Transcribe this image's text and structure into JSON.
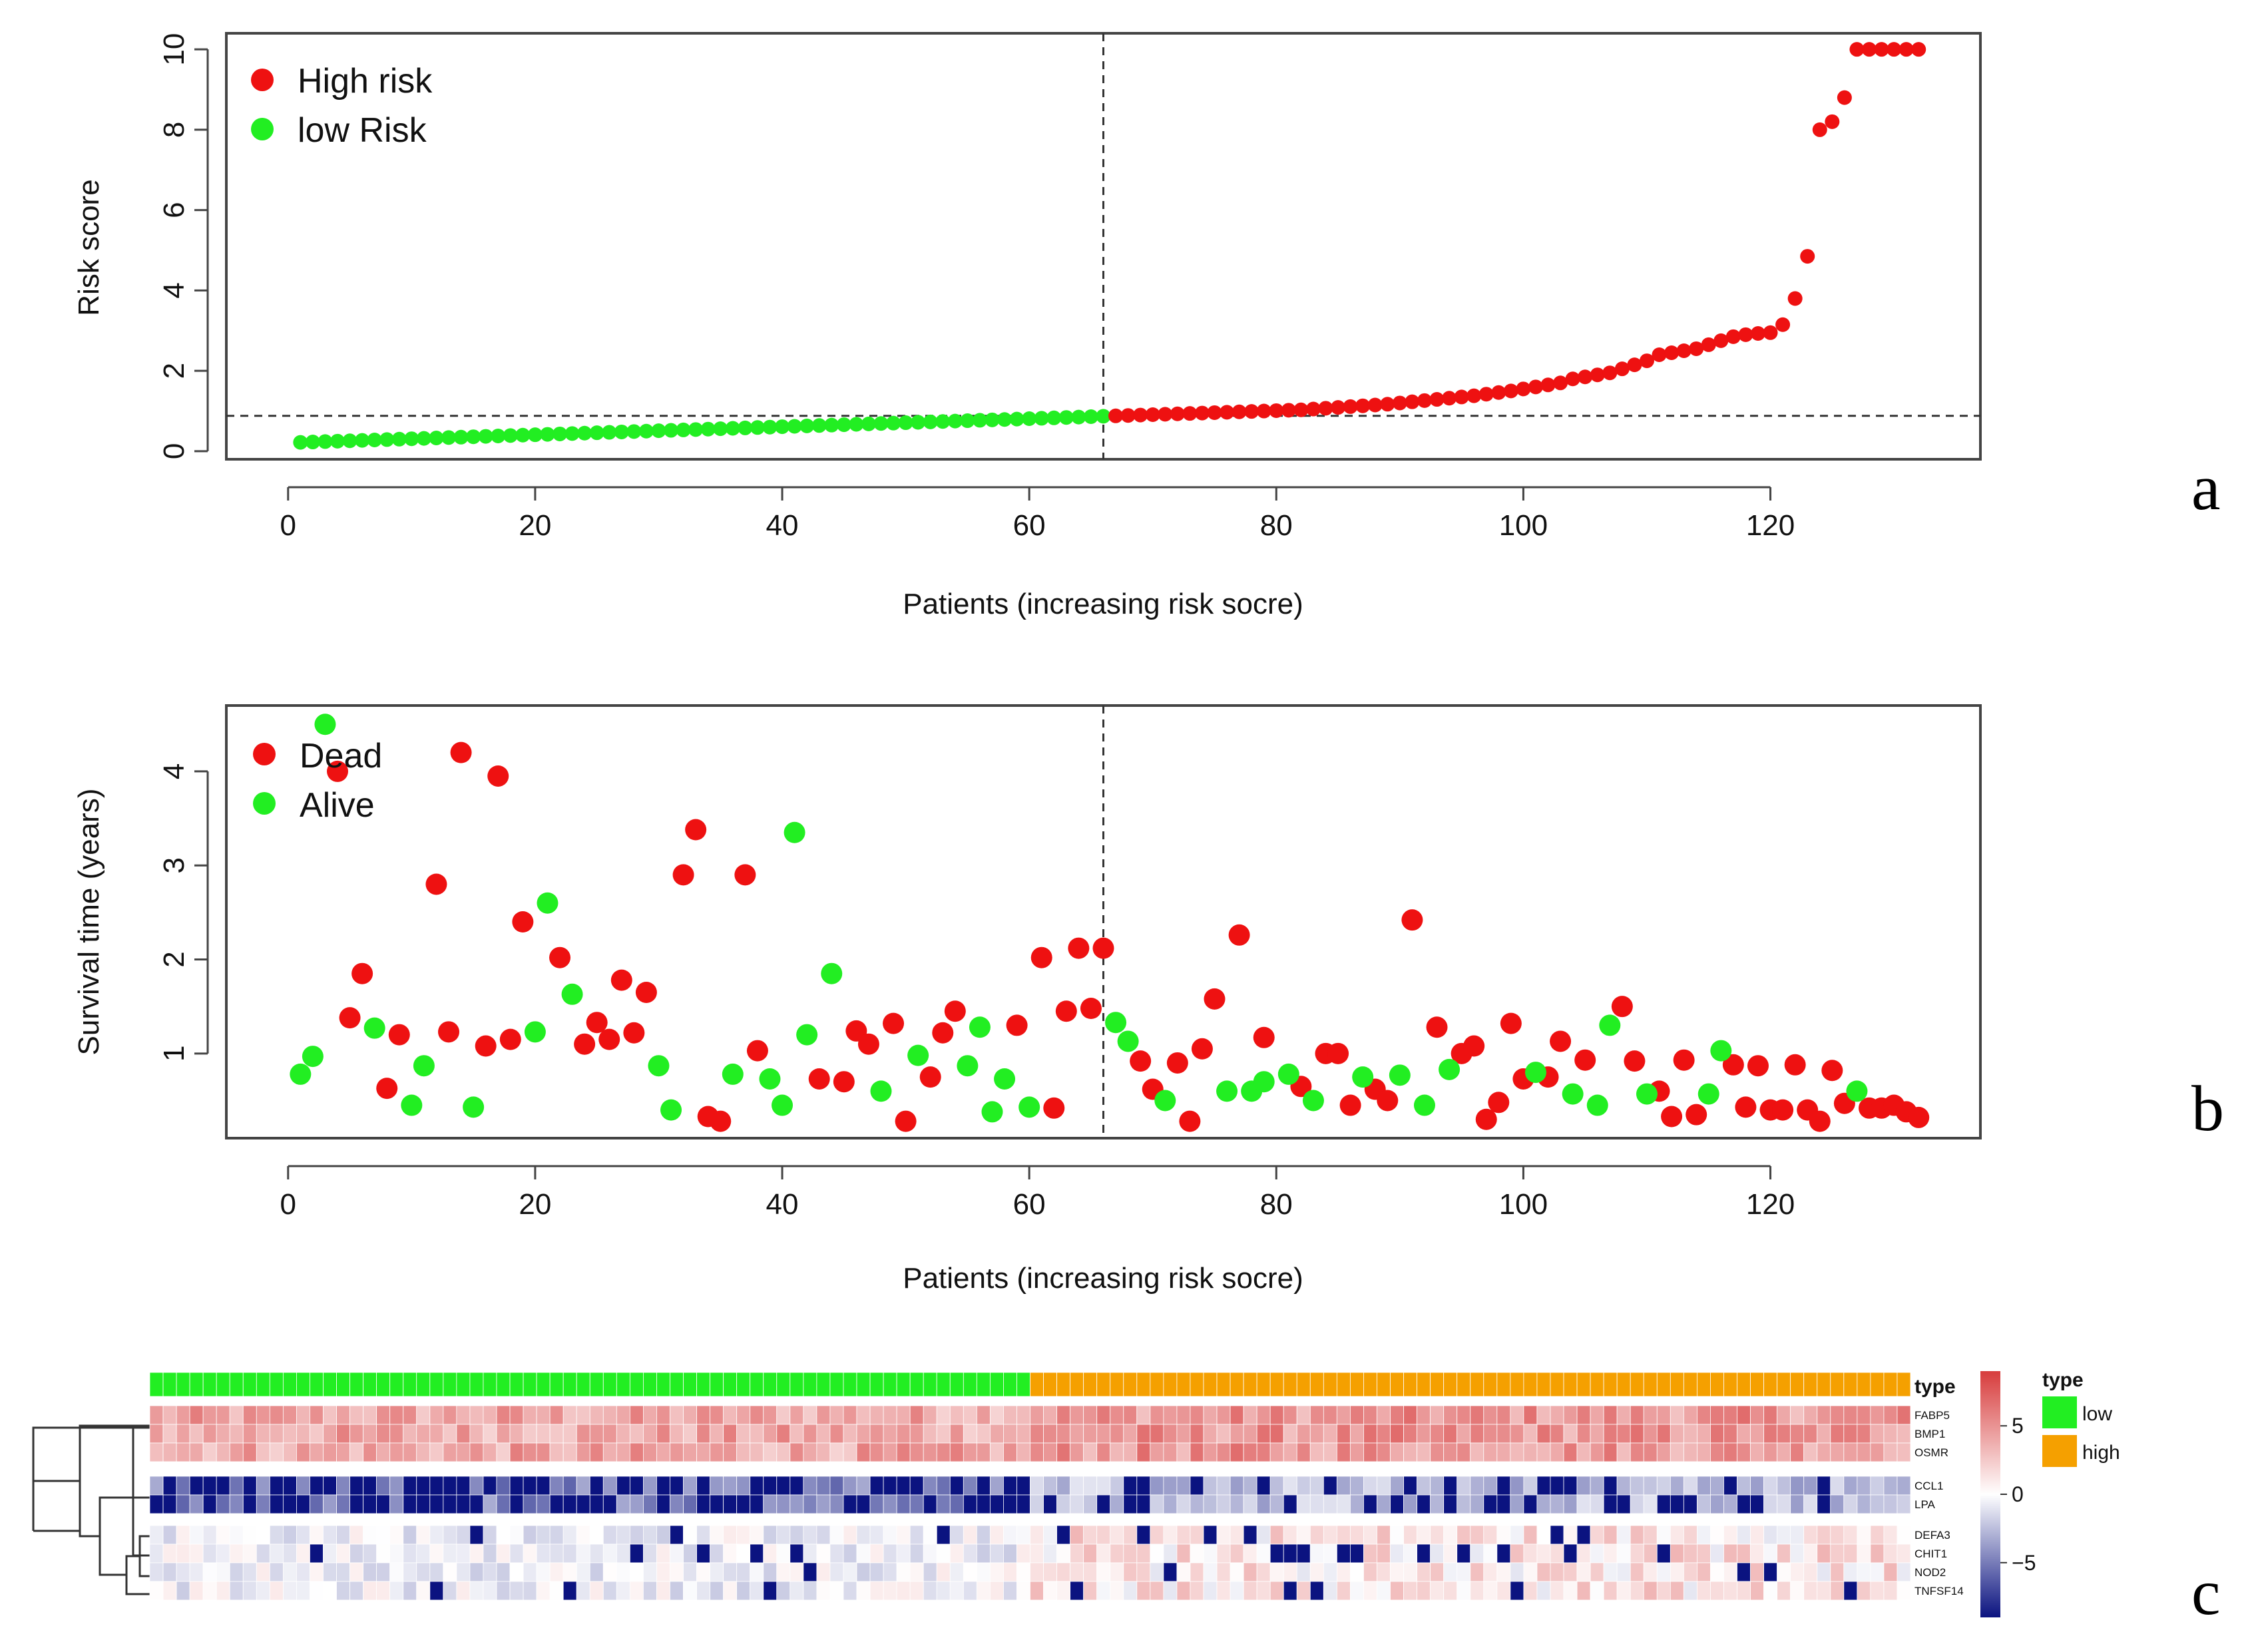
{
  "panels": {
    "a": "a",
    "b": "b",
    "c": "c"
  },
  "colors": {
    "red": "#ee1111",
    "green": "#22ee22",
    "orange": "#f5a000",
    "navy": "#0b1380"
  },
  "chart_data": [
    {
      "type": "scatter",
      "panel": "a",
      "title": "",
      "xlabel": "Patients (increasing risk socre)",
      "ylabel": "Risk score",
      "xlim": [
        -5,
        137
      ],
      "ylim": [
        -0.2,
        10.4
      ],
      "xticks": [
        "0",
        "20",
        "40",
        "60",
        "80",
        "100",
        "120"
      ],
      "yticks": [
        "0",
        "2",
        "4",
        "6",
        "8",
        "10"
      ],
      "cutoff_x": 66,
      "cutoff_y": 0.88,
      "legend": {
        "position": "top-left",
        "entries": [
          "High risk",
          "low Risk"
        ]
      },
      "series": [
        {
          "name": "low Risk",
          "color": "#22ee22",
          "x": [
            1,
            2,
            3,
            4,
            5,
            6,
            7,
            8,
            9,
            10,
            11,
            12,
            13,
            14,
            15,
            16,
            17,
            18,
            19,
            20,
            21,
            22,
            23,
            24,
            25,
            26,
            27,
            28,
            29,
            30,
            31,
            32,
            33,
            34,
            35,
            36,
            37,
            38,
            39,
            40,
            41,
            42,
            43,
            44,
            45,
            46,
            47,
            48,
            49,
            50,
            51,
            52,
            53,
            54,
            55,
            56,
            57,
            58,
            59,
            60,
            61,
            62,
            63,
            64,
            65,
            66
          ],
          "y": [
            0.22,
            0.23,
            0.24,
            0.25,
            0.26,
            0.27,
            0.28,
            0.29,
            0.3,
            0.31,
            0.32,
            0.33,
            0.34,
            0.35,
            0.36,
            0.37,
            0.38,
            0.39,
            0.4,
            0.41,
            0.42,
            0.43,
            0.44,
            0.45,
            0.46,
            0.47,
            0.48,
            0.49,
            0.5,
            0.51,
            0.52,
            0.53,
            0.54,
            0.55,
            0.56,
            0.57,
            0.58,
            0.59,
            0.6,
            0.61,
            0.62,
            0.63,
            0.64,
            0.65,
            0.66,
            0.67,
            0.68,
            0.69,
            0.7,
            0.71,
            0.72,
            0.73,
            0.74,
            0.75,
            0.76,
            0.77,
            0.78,
            0.79,
            0.8,
            0.81,
            0.82,
            0.83,
            0.84,
            0.85,
            0.86,
            0.87
          ]
        },
        {
          "name": "High risk",
          "color": "#ee1111",
          "x": [
            67,
            68,
            69,
            70,
            71,
            72,
            73,
            74,
            75,
            76,
            77,
            78,
            79,
            80,
            81,
            82,
            83,
            84,
            85,
            86,
            87,
            88,
            89,
            90,
            91,
            92,
            93,
            94,
            95,
            96,
            97,
            98,
            99,
            100,
            101,
            102,
            103,
            104,
            105,
            106,
            107,
            108,
            109,
            110,
            111,
            112,
            113,
            114,
            115,
            116,
            117,
            118,
            119,
            120,
            121,
            122,
            123,
            124,
            125,
            126,
            127,
            128,
            129,
            130,
            131,
            132
          ],
          "y": [
            0.88,
            0.89,
            0.9,
            0.91,
            0.92,
            0.93,
            0.94,
            0.95,
            0.96,
            0.97,
            0.98,
            0.99,
            1.0,
            1.01,
            1.02,
            1.03,
            1.05,
            1.07,
            1.09,
            1.11,
            1.13,
            1.15,
            1.17,
            1.2,
            1.23,
            1.26,
            1.29,
            1.32,
            1.35,
            1.38,
            1.42,
            1.46,
            1.5,
            1.55,
            1.6,
            1.65,
            1.7,
            1.8,
            1.85,
            1.9,
            1.95,
            2.05,
            2.15,
            2.25,
            2.4,
            2.45,
            2.5,
            2.55,
            2.65,
            2.75,
            2.85,
            2.9,
            2.93,
            2.95,
            3.15,
            3.8,
            4.85,
            8.0,
            8.2,
            8.8,
            10.0,
            10.0,
            10.0,
            10.0,
            10.0,
            10.0
          ]
        }
      ]
    },
    {
      "type": "scatter",
      "panel": "b",
      "title": "",
      "xlabel": "Patients (increasing risk socre)",
      "ylabel": "Survival time (years)",
      "xlim": [
        -5,
        137
      ],
      "ylim": [
        0.1,
        4.7
      ],
      "xticks": [
        "0",
        "20",
        "40",
        "60",
        "80",
        "100",
        "120"
      ],
      "yticks": [
        "1",
        "2",
        "3",
        "4"
      ],
      "cutoff_x": 66,
      "legend": {
        "position": "top-left",
        "entries": [
          "Dead",
          "Alive"
        ]
      },
      "series": [
        {
          "name": "Dead",
          "color": "#ee1111",
          "x": [
            4,
            5,
            6,
            8,
            9,
            12,
            13,
            14,
            16,
            17,
            18,
            19,
            22,
            24,
            25,
            26,
            27,
            28,
            29,
            32,
            33,
            34,
            35,
            37,
            38,
            43,
            45,
            46,
            47,
            49,
            50,
            52,
            53,
            54,
            59,
            61,
            62,
            63,
            64,
            65,
            66,
            69,
            70,
            72,
            73,
            74,
            75,
            77,
            79,
            82,
            84,
            85,
            86,
            88,
            89,
            91,
            93,
            95,
            96,
            97,
            98,
            99,
            100,
            102,
            103,
            105,
            108,
            109,
            111,
            112,
            113,
            114,
            117,
            118,
            119,
            120,
            121,
            122,
            123,
            124,
            125,
            126,
            128,
            129,
            130,
            131,
            132
          ],
          "y": [
            4.0,
            1.38,
            1.85,
            0.63,
            1.2,
            2.8,
            1.23,
            4.2,
            1.08,
            3.95,
            1.15,
            2.4,
            2.02,
            1.1,
            1.33,
            1.15,
            1.78,
            1.22,
            1.65,
            2.9,
            3.38,
            0.33,
            0.28,
            2.9,
            1.03,
            0.73,
            0.7,
            1.24,
            1.1,
            1.32,
            0.28,
            0.75,
            1.22,
            1.45,
            1.3,
            2.02,
            0.42,
            1.45,
            2.12,
            1.48,
            2.12,
            0.92,
            0.62,
            0.9,
            0.28,
            1.05,
            1.58,
            2.26,
            1.17,
            0.65,
            1.0,
            1.0,
            0.45,
            0.62,
            0.5,
            2.42,
            1.28,
            1.0,
            1.08,
            0.3,
            0.48,
            1.32,
            0.73,
            0.75,
            1.13,
            0.93,
            1.5,
            0.92,
            0.6,
            0.33,
            0.93,
            0.35,
            0.88,
            0.43,
            0.87,
            0.4,
            0.4,
            0.88,
            0.4,
            0.28,
            0.82,
            0.47,
            0.42,
            0.42,
            0.45,
            0.38,
            0.32
          ]
        },
        {
          "name": "Alive",
          "color": "#22ee22",
          "x": [
            1,
            2,
            3,
            7,
            10,
            11,
            15,
            20,
            21,
            23,
            30,
            31,
            36,
            39,
            40,
            41,
            42,
            44,
            48,
            51,
            55,
            56,
            57,
            58,
            60,
            67,
            68,
            71,
            76,
            78,
            79,
            81,
            83,
            87,
            90,
            92,
            94,
            101,
            104,
            106,
            107,
            110,
            115,
            116,
            127
          ],
          "y": [
            0.78,
            0.97,
            4.5,
            1.27,
            0.45,
            0.87,
            0.43,
            1.23,
            2.6,
            1.63,
            0.87,
            0.4,
            0.78,
            0.73,
            0.45,
            3.35,
            1.2,
            1.85,
            0.6,
            0.98,
            0.87,
            1.28,
            0.38,
            0.73,
            0.43,
            1.33,
            1.13,
            0.5,
            0.6,
            0.6,
            0.7,
            0.78,
            0.5,
            0.75,
            0.77,
            0.45,
            0.83,
            0.8,
            0.57,
            0.45,
            1.3,
            0.57,
            0.57,
            1.03,
            0.6
          ]
        }
      ]
    },
    {
      "type": "heatmap",
      "panel": "c",
      "title": "",
      "annotation_label": "type",
      "annotation_groups": [
        {
          "name": "low",
          "count": 66,
          "color": "#22ee22"
        },
        {
          "name": "high",
          "count": 66,
          "color": "#f5a000"
        }
      ],
      "gene_blocks": [
        [
          "FABP5",
          "BMP1",
          "OSMR"
        ],
        [
          "CCL1",
          "LPA"
        ],
        [
          "DEFA3",
          "CHIT1",
          "NOD2",
          "TNFSF14"
        ]
      ],
      "colorbar": {
        "ticks": [
          "5",
          "0",
          "−5"
        ],
        "min": -9,
        "max": 9,
        "tick_values": [
          5,
          0,
          -5
        ]
      },
      "legend": {
        "title": "type",
        "entries": [
          "low",
          "high"
        ]
      },
      "value_range_by_block": [
        [
          2,
          7
        ],
        [
          -9,
          -1
        ],
        [
          -9,
          4
        ]
      ]
    }
  ]
}
